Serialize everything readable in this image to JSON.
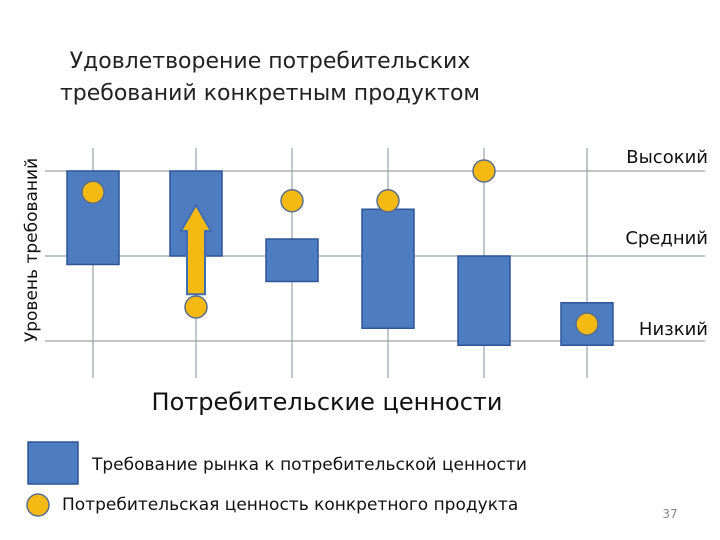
{
  "chart_data": {
    "type": "floating-bar-with-markers",
    "title_lines": [
      "Удовлетворение потребительских",
      "требований конкретным продуктом"
    ],
    "ylabel": "Уровень требований",
    "xlabel": "Потребительские ценности",
    "y_levels": [
      "Низкий",
      "Средний",
      "Высокий"
    ],
    "ylim": [
      0,
      2.2
    ],
    "grid": true,
    "bars": [
      {
        "low": 0.9,
        "high": 2.0
      },
      {
        "low": 1.0,
        "high": 2.0
      },
      {
        "low": 0.7,
        "high": 1.2
      },
      {
        "low": 0.15,
        "high": 1.55
      },
      {
        "low": -0.05,
        "high": 1.0
      },
      {
        "low": -0.05,
        "high": 0.45
      }
    ],
    "markers": [
      1.75,
      0.4,
      1.65,
      1.65,
      2.0,
      0.2
    ],
    "arrow": {
      "category_index": 1,
      "from": 0.55,
      "to": 1.6
    },
    "legend": [
      {
        "type": "bar",
        "label": "Требование рынка к потребительской ценности"
      },
      {
        "type": "marker",
        "label": "Потребительская ценность конкретного продукта"
      }
    ],
    "page_number": "37",
    "colors": {
      "bar_fill": "#4e7cc1",
      "bar_stroke": "#2f5597",
      "marker_fill": "#f5b914",
      "marker_stroke": "#5b6f8a",
      "arrow_fill": "#f5b914",
      "arrow_stroke": "#3d6eb3",
      "grid": "#9aa2aa"
    }
  }
}
